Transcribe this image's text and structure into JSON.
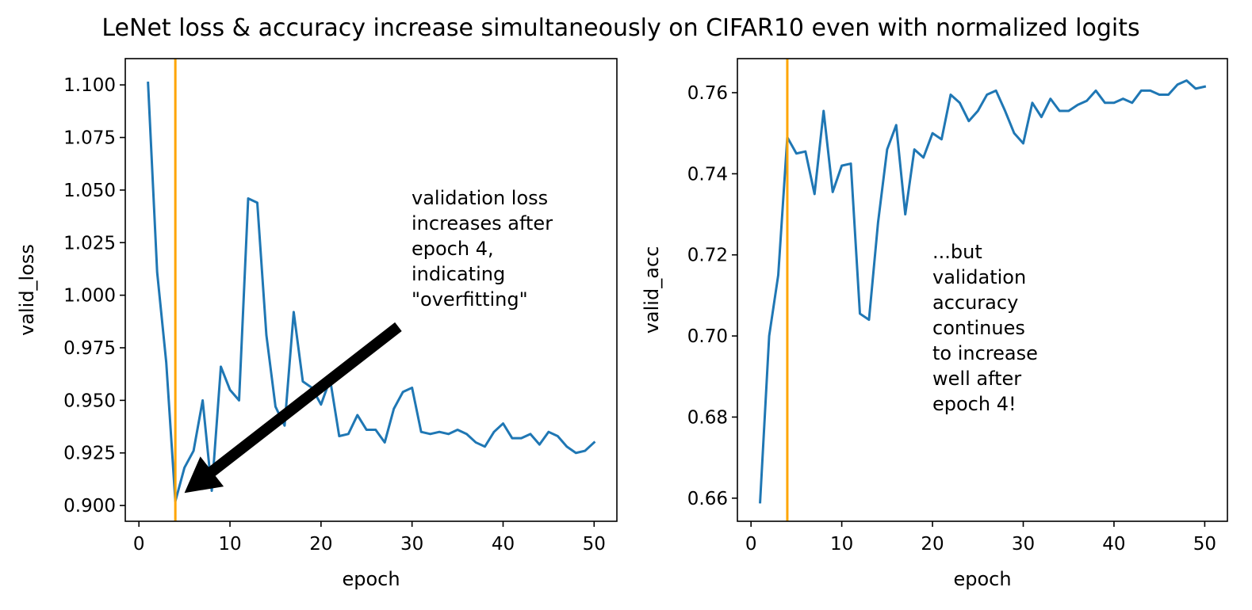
{
  "figure": {
    "title": "LeNet loss & accuracy increase simultaneously on CIFAR10 even with normalized logits"
  },
  "colors": {
    "series": "#1f77b4",
    "marker_line": "#ffa500",
    "arrow": "#000000",
    "frame": "#000000",
    "background": "#ffffff"
  },
  "chart_data": [
    {
      "type": "line",
      "xlabel": "epoch",
      "ylabel": "valid_loss",
      "xlim": [
        -1.5,
        52.5
      ],
      "ylim": [
        0.8925,
        1.1125
      ],
      "xticks": [
        0,
        10,
        20,
        30,
        40,
        50
      ],
      "xtick_labels": [
        "0",
        "10",
        "20",
        "30",
        "40",
        "50"
      ],
      "yticks": [
        0.9,
        0.925,
        0.95,
        0.975,
        1.0,
        1.025,
        1.05,
        1.075,
        1.1
      ],
      "ytick_labels": [
        "0.900",
        "0.925",
        "0.950",
        "0.975",
        "1.000",
        "1.025",
        "1.050",
        "1.075",
        "1.100"
      ],
      "vertical_line_x": 4,
      "grid": false,
      "series": [
        {
          "x": [
            1,
            2,
            3,
            4,
            5,
            6,
            7,
            8,
            9,
            10,
            11,
            12,
            13,
            14,
            15,
            16,
            17,
            18,
            19,
            20,
            21,
            22,
            23,
            24,
            25,
            26,
            27,
            28,
            29,
            30,
            31,
            32,
            33,
            34,
            35,
            36,
            37,
            38,
            39,
            40,
            41,
            42,
            43,
            44,
            45,
            46,
            47,
            48,
            49,
            50
          ],
          "values": [
            1.101,
            1.011,
            0.968,
            0.902,
            0.918,
            0.926,
            0.95,
            0.907,
            0.966,
            0.955,
            0.95,
            1.046,
            1.044,
            0.981,
            0.947,
            0.938,
            0.992,
            0.959,
            0.956,
            0.948,
            0.96,
            0.933,
            0.934,
            0.943,
            0.936,
            0.936,
            0.93,
            0.946,
            0.954,
            0.956,
            0.935,
            0.934,
            0.935,
            0.934,
            0.936,
            0.934,
            0.93,
            0.928,
            0.935,
            0.939,
            0.932,
            0.932,
            0.934,
            0.929,
            0.935,
            0.933,
            0.928,
            0.925,
            0.926,
            0.93
          ]
        }
      ],
      "annotation": {
        "lines": [
          "validation loss",
          "increases after",
          "epoch 4,",
          "indicating",
          "\"overfitting\""
        ],
        "arrow_from": [
          28.5,
          0.985
        ],
        "arrow_to": [
          5.0,
          0.906
        ]
      }
    },
    {
      "type": "line",
      "xlabel": "epoch",
      "ylabel": "valid_acc",
      "xlim": [
        -1.5,
        52.5
      ],
      "ylim": [
        0.6543,
        0.7684
      ],
      "xticks": [
        0,
        10,
        20,
        30,
        40,
        50
      ],
      "xtick_labels": [
        "0",
        "10",
        "20",
        "30",
        "40",
        "50"
      ],
      "yticks": [
        0.66,
        0.68,
        0.7,
        0.72,
        0.74,
        0.76
      ],
      "ytick_labels": [
        "0.66",
        "0.68",
        "0.70",
        "0.72",
        "0.74",
        "0.76"
      ],
      "vertical_line_x": 4,
      "grid": false,
      "series": [
        {
          "x": [
            1,
            2,
            3,
            4,
            5,
            6,
            7,
            8,
            9,
            10,
            11,
            12,
            13,
            14,
            15,
            16,
            17,
            18,
            19,
            20,
            21,
            22,
            23,
            24,
            25,
            26,
            27,
            28,
            29,
            30,
            31,
            32,
            33,
            34,
            35,
            36,
            37,
            38,
            39,
            40,
            41,
            42,
            43,
            44,
            45,
            46,
            47,
            48,
            49,
            50
          ],
          "values": [
            0.659,
            0.7,
            0.715,
            0.749,
            0.745,
            0.7455,
            0.735,
            0.7555,
            0.7355,
            0.742,
            0.7425,
            0.7055,
            0.704,
            0.728,
            0.746,
            0.752,
            0.73,
            0.746,
            0.744,
            0.75,
            0.7485,
            0.7595,
            0.7575,
            0.753,
            0.7555,
            0.7595,
            0.7605,
            0.7555,
            0.75,
            0.7475,
            0.7575,
            0.754,
            0.7585,
            0.7555,
            0.7555,
            0.757,
            0.758,
            0.7605,
            0.7575,
            0.7575,
            0.7585,
            0.7575,
            0.7605,
            0.7605,
            0.7595,
            0.7595,
            0.762,
            0.763,
            0.761,
            0.7615
          ]
        }
      ],
      "annotation": {
        "lines": [
          "...but",
          "validation",
          "accuracy",
          "continues",
          "to increase",
          "well after",
          "epoch 4!"
        ]
      }
    }
  ]
}
